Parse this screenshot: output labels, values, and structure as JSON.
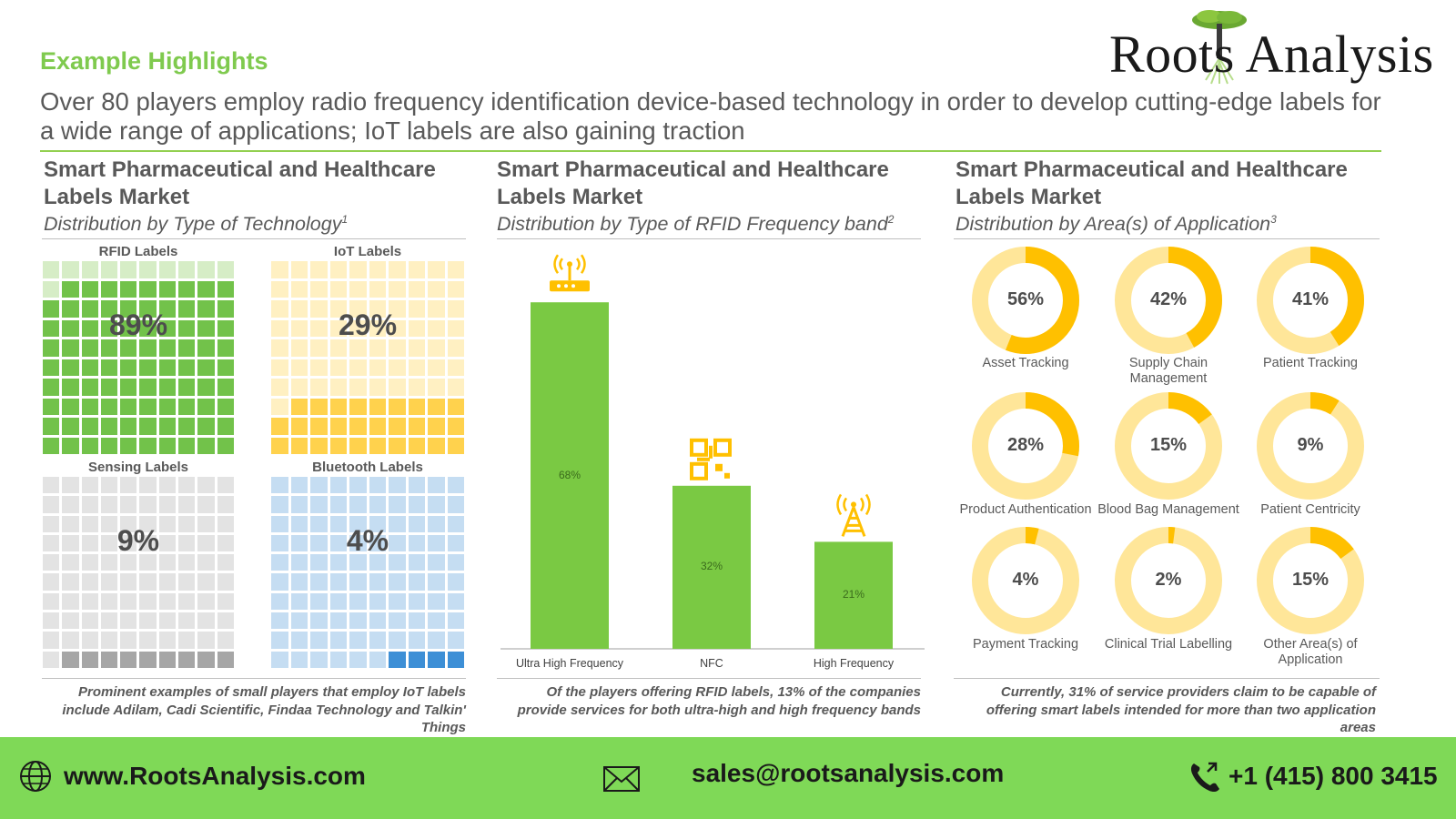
{
  "header": {
    "eyebrow": "Example Highlights",
    "headline": "Over 80 players employ radio frequency identification device-based technology in order to develop cutting-edge labels for a wide range of applications; IoT labels are also gaining traction"
  },
  "logo": {
    "text": "Roots Analysis",
    "icon": "tree-logo-icon"
  },
  "columns": [
    {
      "title": "Smart Pharmaceutical and Healthcare Labels Market",
      "subtitle": "Distribution by Type of Technology",
      "footnote_mark": "1",
      "note": "Prominent examples of small players that employ IoT labels include Adilam, Cadi Scientific, Findaa Technology and Talkin' Things"
    },
    {
      "title": "Smart Pharmaceutical and Healthcare Labels Market",
      "subtitle": "Distribution by Type of RFID Frequency band",
      "footnote_mark": "2",
      "note": "Of the players offering RFID labels, 13% of the companies provide services for both ultra-high and high frequency bands"
    },
    {
      "title": "Smart Pharmaceutical and Healthcare Labels Market",
      "subtitle": "Distribution by Area(s) of Application",
      "footnote_mark": "3",
      "note": "Currently, 31% of service providers claim to be capable of offering smart labels intended for more than two application areas"
    }
  ],
  "chart_data": [
    {
      "type": "waffle",
      "title": "Distribution by Type of Technology",
      "categories": [
        "RFID Labels",
        "IoT Labels",
        "Sensing Labels",
        "Bluetooth  Labels"
      ],
      "values": [
        89,
        29,
        9,
        4
      ],
      "value_labels": [
        "89%",
        "29%",
        "9%",
        "4%"
      ],
      "colors": {
        "filled": [
          "#72c24a",
          "#ffd24d",
          "#a6a6a6",
          "#3d8fd6"
        ],
        "empty": [
          "#d6edc6",
          "#fff0c2",
          "#e3e3e3",
          "#c5ddf2"
        ]
      }
    },
    {
      "type": "bar",
      "title": "Distribution by Type of RFID Frequency band",
      "categories": [
        "Ultra High Frequency",
        "NFC",
        "High Frequency"
      ],
      "values": [
        68,
        32,
        21
      ],
      "value_labels": [
        "68%",
        "32%",
        "21%"
      ],
      "icons": [
        "rfid-router-icon",
        "qr-chip-icon",
        "antenna-tower-icon"
      ],
      "color": "#7ac943",
      "icon_color": "#ffc000",
      "ylim": [
        0,
        75
      ]
    },
    {
      "type": "donut",
      "title": "Distribution by Area(s) of Application",
      "categories": [
        "Asset Tracking",
        "Supply Chain Management",
        "Patient Tracking",
        "Product Authentication",
        "Blood Bag Management",
        "Patient Centricity",
        "Payment Tracking",
        "Clinical Trial Labelling",
        "Other Area(s) of Application"
      ],
      "values": [
        56,
        42,
        41,
        28,
        15,
        9,
        4,
        2,
        15
      ],
      "value_labels": [
        "56%",
        "42%",
        "41%",
        "28%",
        "15%",
        "9%",
        "4%",
        "2%",
        "15%"
      ],
      "colors": {
        "filled": "#ffc000",
        "rest": "#ffe699"
      }
    }
  ],
  "footer": {
    "website": "www.RootsAnalysis.com",
    "email": "sales@rootsanalysis.com",
    "phone": "+1 (415) 800 3415",
    "icons": [
      "globe-icon",
      "mail-icon",
      "phone-icon"
    ]
  }
}
